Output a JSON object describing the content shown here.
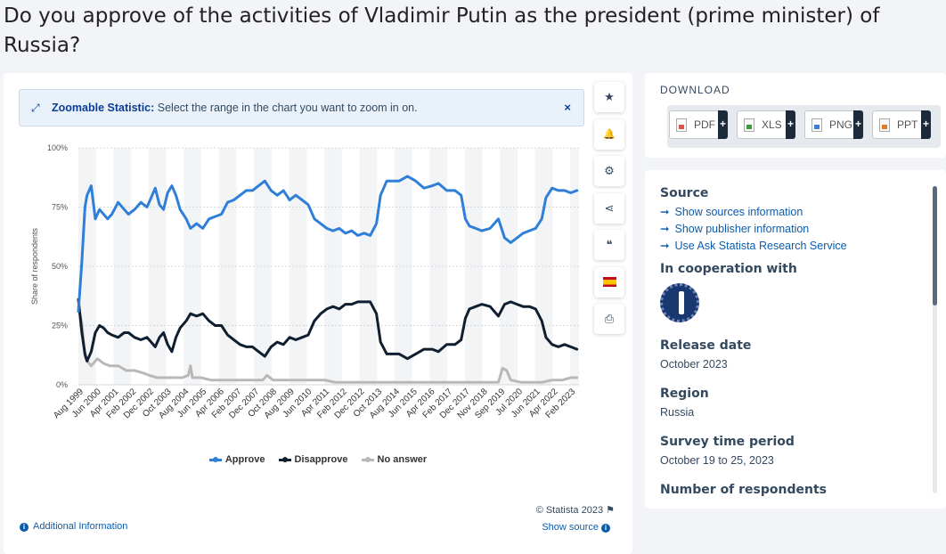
{
  "page": {
    "title": "Do you approve of the activities of Vladimir Putin as the president (prime minister) of Russia?"
  },
  "zoom_banner": {
    "label": "Zoomable Statistic:",
    "text": " Select the range in the chart you want to zoom in on.",
    "close": "×"
  },
  "toolbar": {
    "star_icon": "★",
    "bell_icon": "🔔",
    "gear_icon": "⚙",
    "share_icon": "⋖",
    "quote_icon": "❝",
    "print_icon": "⎙"
  },
  "chart_data": {
    "type": "line",
    "title": "",
    "xlabel": "",
    "ylabel": "Share of respondents",
    "ylim": [
      0,
      100
    ],
    "yticks": [
      "0%",
      "25%",
      "50%",
      "75%",
      "100%"
    ],
    "x_tick_labels": [
      "Aug 1999",
      "Jun 2000",
      "Apr 2001",
      "Feb 2002",
      "Dec 2002",
      "Oct 2003",
      "Aug 2004",
      "Jun 2005",
      "Apr 2006",
      "Feb 2007",
      "Dec 2007",
      "Oct 2008",
      "Aug 2009",
      "Jun 2010",
      "Apr 2011",
      "Feb 2012",
      "Dec 2012",
      "Oct 2013",
      "Aug 2014",
      "Jun 2015",
      "Apr 2016",
      "Feb 2017",
      "Dec 2017",
      "Nov 2018",
      "Sep 2019",
      "Jul 2020",
      "Jun 2021",
      "Apr 2022",
      "Feb 2023"
    ],
    "x_range": [
      1999.58,
      2023.8
    ],
    "series": [
      {
        "name": "Approve",
        "color": "#2f7fd8",
        "points": [
          [
            1999.58,
            31
          ],
          [
            1999.75,
            52
          ],
          [
            1999.9,
            75
          ],
          [
            2000.0,
            80
          ],
          [
            2000.2,
            84
          ],
          [
            2000.4,
            70
          ],
          [
            2000.6,
            74
          ],
          [
            2000.8,
            72
          ],
          [
            2001.0,
            70
          ],
          [
            2001.2,
            72
          ],
          [
            2001.5,
            77
          ],
          [
            2001.8,
            74
          ],
          [
            2002.0,
            72
          ],
          [
            2002.3,
            74
          ],
          [
            2002.6,
            77
          ],
          [
            2002.9,
            75
          ],
          [
            2003.1,
            79
          ],
          [
            2003.3,
            83
          ],
          [
            2003.5,
            76
          ],
          [
            2003.7,
            74
          ],
          [
            2003.9,
            81
          ],
          [
            2004.1,
            84
          ],
          [
            2004.3,
            80
          ],
          [
            2004.5,
            74
          ],
          [
            2004.8,
            70
          ],
          [
            2005.0,
            66
          ],
          [
            2005.3,
            68
          ],
          [
            2005.6,
            66
          ],
          [
            2005.9,
            70
          ],
          [
            2006.2,
            71
          ],
          [
            2006.5,
            72
          ],
          [
            2006.8,
            77
          ],
          [
            2007.1,
            78
          ],
          [
            2007.4,
            80
          ],
          [
            2007.7,
            82
          ],
          [
            2008.0,
            82
          ],
          [
            2008.3,
            84
          ],
          [
            2008.6,
            86
          ],
          [
            2008.9,
            82
          ],
          [
            2009.2,
            80
          ],
          [
            2009.5,
            82
          ],
          [
            2009.8,
            78
          ],
          [
            2010.1,
            80
          ],
          [
            2010.4,
            78
          ],
          [
            2010.7,
            76
          ],
          [
            2011.0,
            70
          ],
          [
            2011.3,
            68
          ],
          [
            2011.6,
            66
          ],
          [
            2011.9,
            65
          ],
          [
            2012.2,
            66
          ],
          [
            2012.5,
            64
          ],
          [
            2012.8,
            65
          ],
          [
            2013.1,
            63
          ],
          [
            2013.4,
            64
          ],
          [
            2013.7,
            63
          ],
          [
            2014.0,
            68
          ],
          [
            2014.2,
            80
          ],
          [
            2014.5,
            86
          ],
          [
            2014.8,
            86
          ],
          [
            2015.1,
            86
          ],
          [
            2015.5,
            88
          ],
          [
            2015.9,
            86
          ],
          [
            2016.3,
            83
          ],
          [
            2016.7,
            84
          ],
          [
            2017.0,
            85
          ],
          [
            2017.4,
            82
          ],
          [
            2017.8,
            82
          ],
          [
            2018.1,
            80
          ],
          [
            2018.3,
            70
          ],
          [
            2018.5,
            67
          ],
          [
            2018.8,
            66
          ],
          [
            2019.1,
            65
          ],
          [
            2019.5,
            66
          ],
          [
            2019.9,
            70
          ],
          [
            2020.2,
            62
          ],
          [
            2020.5,
            60
          ],
          [
            2020.8,
            62
          ],
          [
            2021.1,
            64
          ],
          [
            2021.4,
            65
          ],
          [
            2021.7,
            66
          ],
          [
            2022.0,
            70
          ],
          [
            2022.2,
            79
          ],
          [
            2022.5,
            83
          ],
          [
            2022.8,
            82
          ],
          [
            2023.1,
            82
          ],
          [
            2023.4,
            81
          ],
          [
            2023.7,
            82
          ]
        ]
      },
      {
        "name": "Disapprove",
        "color": "#0f1f30",
        "points": [
          [
            1999.58,
            36
          ],
          [
            1999.75,
            22
          ],
          [
            1999.9,
            13
          ],
          [
            2000.0,
            10
          ],
          [
            2000.2,
            14
          ],
          [
            2000.4,
            22
          ],
          [
            2000.6,
            25
          ],
          [
            2000.8,
            24
          ],
          [
            2001.0,
            22
          ],
          [
            2001.2,
            21
          ],
          [
            2001.5,
            20
          ],
          [
            2001.8,
            22
          ],
          [
            2002.0,
            22
          ],
          [
            2002.3,
            20
          ],
          [
            2002.6,
            19
          ],
          [
            2002.9,
            20
          ],
          [
            2003.1,
            18
          ],
          [
            2003.3,
            16
          ],
          [
            2003.5,
            20
          ],
          [
            2003.7,
            22
          ],
          [
            2003.9,
            17
          ],
          [
            2004.1,
            14
          ],
          [
            2004.3,
            20
          ],
          [
            2004.5,
            24
          ],
          [
            2004.8,
            27
          ],
          [
            2005.0,
            30
          ],
          [
            2005.3,
            29
          ],
          [
            2005.6,
            30
          ],
          [
            2005.9,
            27
          ],
          [
            2006.2,
            25
          ],
          [
            2006.5,
            25
          ],
          [
            2006.8,
            21
          ],
          [
            2007.1,
            19
          ],
          [
            2007.4,
            17
          ],
          [
            2007.7,
            16
          ],
          [
            2008.0,
            16
          ],
          [
            2008.3,
            14
          ],
          [
            2008.6,
            12
          ],
          [
            2008.9,
            16
          ],
          [
            2009.2,
            18
          ],
          [
            2009.5,
            17
          ],
          [
            2009.8,
            20
          ],
          [
            2010.1,
            19
          ],
          [
            2010.4,
            20
          ],
          [
            2010.7,
            21
          ],
          [
            2011.0,
            27
          ],
          [
            2011.3,
            30
          ],
          [
            2011.6,
            32
          ],
          [
            2011.9,
            33
          ],
          [
            2012.2,
            32
          ],
          [
            2012.5,
            34
          ],
          [
            2012.8,
            34
          ],
          [
            2013.1,
            35
          ],
          [
            2013.4,
            35
          ],
          [
            2013.7,
            35
          ],
          [
            2014.0,
            30
          ],
          [
            2014.2,
            18
          ],
          [
            2014.5,
            13
          ],
          [
            2014.8,
            13
          ],
          [
            2015.1,
            13
          ],
          [
            2015.5,
            11
          ],
          [
            2015.9,
            13
          ],
          [
            2016.3,
            15
          ],
          [
            2016.7,
            15
          ],
          [
            2017.0,
            14
          ],
          [
            2017.4,
            17
          ],
          [
            2017.8,
            17
          ],
          [
            2018.1,
            19
          ],
          [
            2018.3,
            28
          ],
          [
            2018.5,
            32
          ],
          [
            2018.8,
            33
          ],
          [
            2019.1,
            34
          ],
          [
            2019.5,
            33
          ],
          [
            2019.9,
            29
          ],
          [
            2020.2,
            34
          ],
          [
            2020.5,
            35
          ],
          [
            2020.8,
            34
          ],
          [
            2021.1,
            33
          ],
          [
            2021.4,
            33
          ],
          [
            2021.7,
            32
          ],
          [
            2022.0,
            27
          ],
          [
            2022.2,
            20
          ],
          [
            2022.5,
            17
          ],
          [
            2022.8,
            16
          ],
          [
            2023.1,
            17
          ],
          [
            2023.4,
            16
          ],
          [
            2023.7,
            15
          ]
        ]
      },
      {
        "name": "No answer",
        "color": "#b8b8b8",
        "points": [
          [
            1999.58,
            33
          ],
          [
            1999.75,
            26
          ],
          [
            1999.9,
            12
          ],
          [
            2000.0,
            10
          ],
          [
            2000.2,
            8
          ],
          [
            2000.5,
            11
          ],
          [
            2000.8,
            9
          ],
          [
            2001.1,
            8
          ],
          [
            2001.5,
            8
          ],
          [
            2001.9,
            6
          ],
          [
            2002.3,
            6
          ],
          [
            2002.7,
            5
          ],
          [
            2003.0,
            4
          ],
          [
            2003.4,
            3
          ],
          [
            2003.8,
            3
          ],
          [
            2004.2,
            3
          ],
          [
            2004.6,
            3
          ],
          [
            2004.9,
            4
          ],
          [
            2005.0,
            8
          ],
          [
            2005.1,
            3
          ],
          [
            2005.5,
            3
          ],
          [
            2006.0,
            2
          ],
          [
            2006.5,
            2
          ],
          [
            2007.0,
            2
          ],
          [
            2007.5,
            2
          ],
          [
            2008.0,
            2
          ],
          [
            2008.5,
            2
          ],
          [
            2008.7,
            4
          ],
          [
            2009.0,
            2
          ],
          [
            2009.5,
            2
          ],
          [
            2010.0,
            2
          ],
          [
            2010.5,
            2
          ],
          [
            2011.0,
            2
          ],
          [
            2011.5,
            2
          ],
          [
            2012.0,
            1
          ],
          [
            2012.5,
            1
          ],
          [
            2013.0,
            1
          ],
          [
            2013.5,
            1
          ],
          [
            2014.0,
            1
          ],
          [
            2014.5,
            1
          ],
          [
            2015.0,
            1
          ],
          [
            2015.5,
            1
          ],
          [
            2016.0,
            1
          ],
          [
            2016.5,
            1
          ],
          [
            2017.0,
            1
          ],
          [
            2017.5,
            1
          ],
          [
            2018.0,
            1
          ],
          [
            2018.5,
            1
          ],
          [
            2019.0,
            1
          ],
          [
            2019.5,
            1
          ],
          [
            2019.9,
            1
          ],
          [
            2020.1,
            7
          ],
          [
            2020.3,
            6
          ],
          [
            2020.5,
            2
          ],
          [
            2021.0,
            1
          ],
          [
            2021.5,
            1
          ],
          [
            2022.0,
            1
          ],
          [
            2022.5,
            2
          ],
          [
            2023.0,
            2
          ],
          [
            2023.4,
            3
          ],
          [
            2023.7,
            3
          ]
        ]
      }
    ]
  },
  "legend": {
    "approve": "Approve",
    "disapprove": "Disapprove",
    "no_answer": "No answer"
  },
  "footer": {
    "credit": "© Statista 2023",
    "additional_info": "Additional Information",
    "show_source": "Show source"
  },
  "download": {
    "title": "DOWNLOAD",
    "buttons": [
      {
        "label": "PDF",
        "color": "#d9534f"
      },
      {
        "label": "XLS",
        "color": "#3c9a3c"
      },
      {
        "label": "PNG",
        "color": "#3b7dd8"
      },
      {
        "label": "PPT",
        "color": "#e07b2a"
      }
    ],
    "plus": "+"
  },
  "info": {
    "source_heading": "Source",
    "links": [
      "Show sources information",
      "Show publisher information",
      "Use Ask Statista Research Service"
    ],
    "cooperation_heading": "In cooperation with",
    "release_heading": "Release date",
    "release_value": "October 2023",
    "region_heading": "Region",
    "region_value": "Russia",
    "survey_heading": "Survey time period",
    "survey_value": "October 19 to 25, 2023",
    "respondents_heading": "Number of respondents"
  }
}
